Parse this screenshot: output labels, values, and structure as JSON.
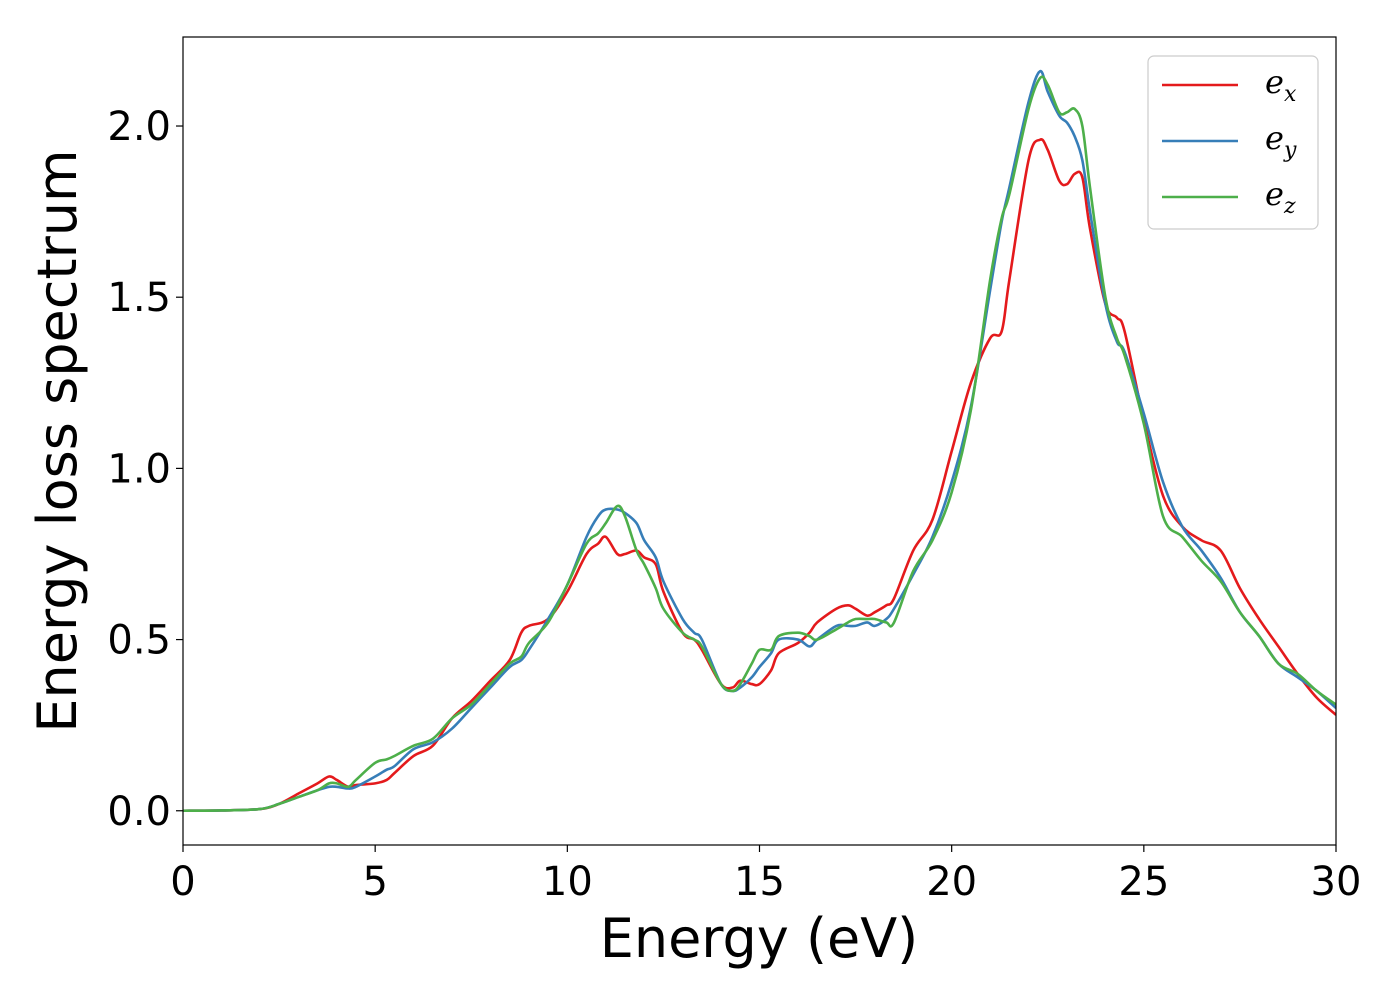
{
  "chart_data": {
    "type": "line",
    "xlabel": "Energy (eV)",
    "ylabel": "Energy loss spectrum",
    "xlim": [
      0,
      30
    ],
    "ylim": [
      -0.1,
      2.26
    ],
    "xticks": [
      0,
      5,
      10,
      15,
      20,
      25,
      30
    ],
    "xtick_labels": [
      "0",
      "5",
      "10",
      "15",
      "20",
      "25",
      "30"
    ],
    "yticks": [
      0.0,
      0.5,
      1.0,
      1.5,
      2.0
    ],
    "ytick_labels": [
      "0.0",
      "0.5",
      "1.0",
      "1.5",
      "2.0"
    ],
    "grid": false,
    "legend_position": "top-right",
    "x": [
      0,
      1,
      2,
      2.5,
      3,
      3.5,
      3.8,
      4.0,
      4.3,
      4.5,
      5.0,
      5.3,
      5.5,
      6.0,
      6.5,
      7.0,
      7.5,
      8.0,
      8.5,
      8.8,
      9.0,
      9.5,
      10.0,
      10.5,
      10.8,
      11.0,
      11.3,
      11.5,
      11.8,
      12.0,
      12.3,
      12.5,
      13.0,
      13.3,
      13.5,
      14.0,
      14.3,
      14.5,
      14.8,
      15.0,
      15.3,
      15.5,
      16.0,
      16.3,
      16.5,
      17.0,
      17.3,
      17.5,
      17.8,
      18.0,
      18.3,
      18.5,
      19.0,
      19.5,
      20.0,
      20.5,
      21.0,
      21.3,
      21.5,
      22.0,
      22.3,
      22.5,
      22.8,
      23.0,
      23.2,
      23.4,
      23.6,
      24.0,
      24.3,
      24.5,
      25.0,
      25.5,
      26.0,
      26.5,
      27.0,
      27.5,
      28.0,
      28.5,
      29.0,
      29.5,
      30.0
    ],
    "series": [
      {
        "name": "e",
        "subscript": "x",
        "color": "#e41a1c",
        "values": [
          0.0,
          0.001,
          0.005,
          0.02,
          0.05,
          0.08,
          0.1,
          0.09,
          0.07,
          0.075,
          0.08,
          0.09,
          0.11,
          0.16,
          0.19,
          0.27,
          0.32,
          0.38,
          0.44,
          0.52,
          0.54,
          0.56,
          0.64,
          0.75,
          0.78,
          0.8,
          0.75,
          0.75,
          0.76,
          0.74,
          0.72,
          0.64,
          0.52,
          0.5,
          0.47,
          0.37,
          0.36,
          0.38,
          0.37,
          0.37,
          0.41,
          0.46,
          0.49,
          0.52,
          0.55,
          0.59,
          0.6,
          0.59,
          0.57,
          0.58,
          0.6,
          0.62,
          0.76,
          0.85,
          1.05,
          1.25,
          1.38,
          1.4,
          1.55,
          1.9,
          1.96,
          1.93,
          1.84,
          1.83,
          1.86,
          1.85,
          1.7,
          1.48,
          1.44,
          1.4,
          1.14,
          0.92,
          0.83,
          0.79,
          0.76,
          0.65,
          0.56,
          0.48,
          0.4,
          0.33,
          0.28
        ]
      },
      {
        "name": "e",
        "subscript": "y",
        "color": "#377eb8",
        "values": [
          0.0,
          0.001,
          0.005,
          0.02,
          0.04,
          0.06,
          0.07,
          0.07,
          0.065,
          0.07,
          0.1,
          0.12,
          0.13,
          0.18,
          0.2,
          0.24,
          0.3,
          0.36,
          0.42,
          0.44,
          0.47,
          0.56,
          0.66,
          0.8,
          0.86,
          0.88,
          0.88,
          0.87,
          0.84,
          0.79,
          0.74,
          0.67,
          0.56,
          0.52,
          0.5,
          0.37,
          0.35,
          0.36,
          0.39,
          0.42,
          0.46,
          0.5,
          0.5,
          0.48,
          0.5,
          0.54,
          0.54,
          0.54,
          0.55,
          0.54,
          0.56,
          0.59,
          0.69,
          0.8,
          0.96,
          1.18,
          1.52,
          1.72,
          1.82,
          2.07,
          2.16,
          2.1,
          2.03,
          2.01,
          1.97,
          1.9,
          1.75,
          1.48,
          1.37,
          1.34,
          1.16,
          0.96,
          0.83,
          0.76,
          0.68,
          0.58,
          0.51,
          0.43,
          0.39,
          0.35,
          0.3
        ]
      },
      {
        "name": "e",
        "subscript": "z",
        "color": "#4daf4a",
        "values": [
          0.0,
          0.001,
          0.005,
          0.02,
          0.04,
          0.06,
          0.08,
          0.08,
          0.07,
          0.09,
          0.14,
          0.15,
          0.16,
          0.19,
          0.21,
          0.27,
          0.31,
          0.37,
          0.43,
          0.45,
          0.49,
          0.55,
          0.66,
          0.78,
          0.81,
          0.84,
          0.89,
          0.86,
          0.76,
          0.72,
          0.65,
          0.59,
          0.52,
          0.5,
          0.48,
          0.37,
          0.35,
          0.37,
          0.43,
          0.47,
          0.47,
          0.51,
          0.52,
          0.51,
          0.5,
          0.53,
          0.55,
          0.56,
          0.56,
          0.56,
          0.55,
          0.55,
          0.7,
          0.79,
          0.93,
          1.17,
          1.55,
          1.73,
          1.8,
          2.05,
          2.14,
          2.12,
          2.04,
          2.04,
          2.05,
          2.0,
          1.82,
          1.5,
          1.38,
          1.33,
          1.13,
          0.86,
          0.8,
          0.73,
          0.67,
          0.58,
          0.51,
          0.43,
          0.4,
          0.35,
          0.31
        ]
      }
    ]
  }
}
